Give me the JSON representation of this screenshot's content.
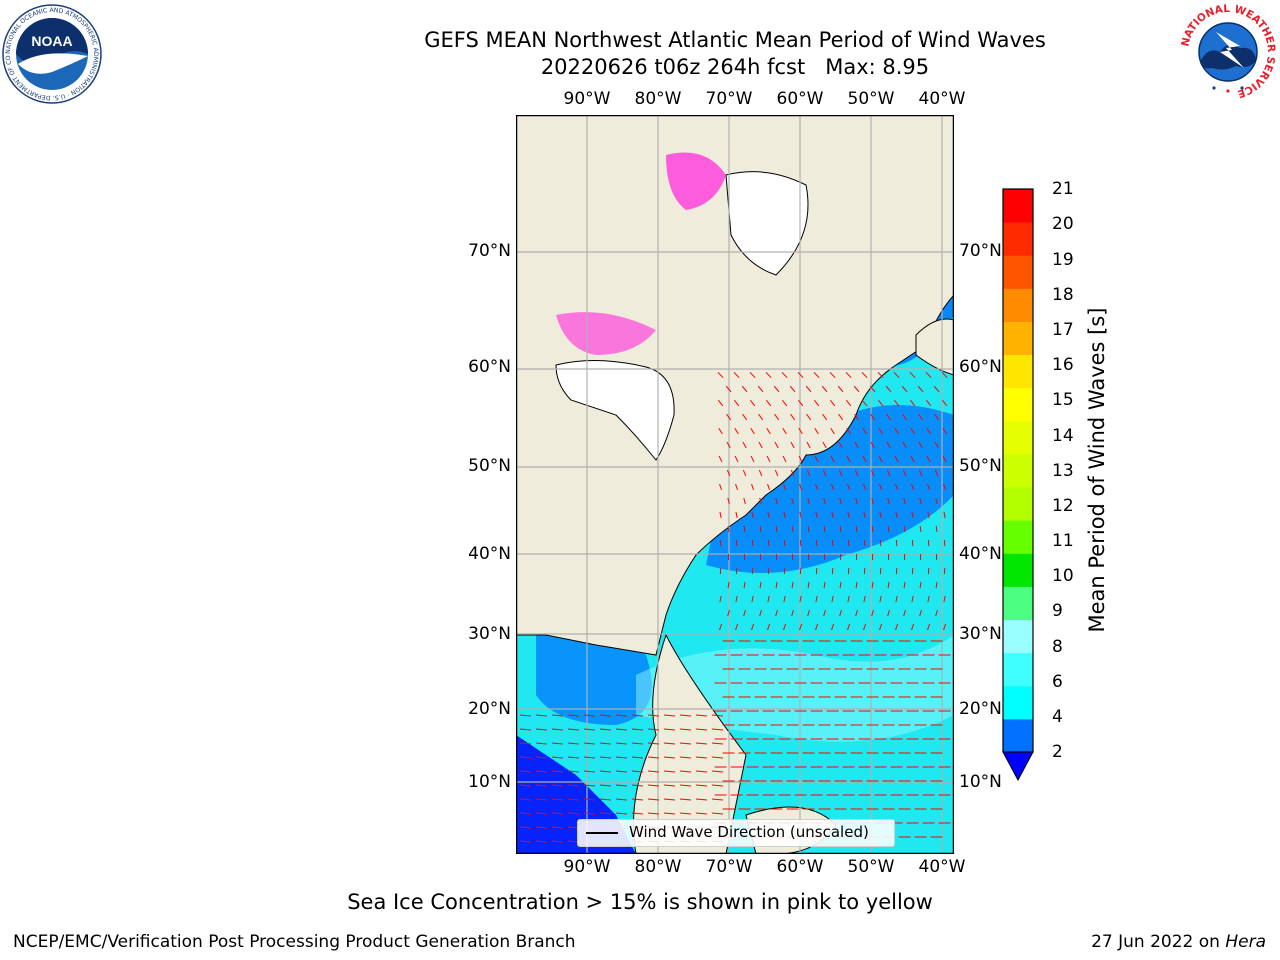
{
  "header": {
    "title_line1": "GEFS MEAN Northwest Atlantic Mean Period of Wind Waves",
    "title_line2": "20220626 t06z 264h fcst   Max: 8.95"
  },
  "map": {
    "lon_labels": [
      "90°W",
      "80°W",
      "70°W",
      "60°W",
      "50°W",
      "40°W"
    ],
    "lat_labels": [
      "70°N",
      "60°N",
      "50°N",
      "40°N",
      "30°N",
      "20°N",
      "10°N"
    ],
    "colors": {
      "land": "#efecdc",
      "ice_free_land": "#ffffff",
      "gridline": "#b0b0b0",
      "arrow": "#ff0000",
      "coast": "#000000"
    },
    "legend_label": "Wind Wave Direction (unscaled)"
  },
  "colorbar": {
    "label": "Mean Period of Wind Waves [s]",
    "ticks": [
      "2",
      "4",
      "6",
      "8",
      "9",
      "10",
      "11",
      "12",
      "13",
      "14",
      "15",
      "16",
      "17",
      "18",
      "19",
      "20",
      "21"
    ],
    "under_color": "#0000ff",
    "colors": [
      "#0070ff",
      "#00ffff",
      "#40ffff",
      "#99ffff",
      "#4dff80",
      "#00e600",
      "#66ff00",
      "#b3ff00",
      "#ccff00",
      "#e6ff00",
      "#ffff00",
      "#ffe600",
      "#ffb300",
      "#ff8c00",
      "#ff5500",
      "#ff2a00",
      "#ff0000"
    ]
  },
  "notes": {
    "sea_ice": "Sea Ice Concentration > 15% is shown in pink to yellow"
  },
  "footer": {
    "left": "NCEP/EMC/Verification Post Processing Product Generation Branch",
    "right_date": "27 Jun 2022 on",
    "right_host": "Hera"
  },
  "logos": {
    "noaa_text": "NOAA",
    "noaa_ring": "NATIONAL OCEANIC AND ATMOSPHERIC ADMINISTRATION · U.S. DEPARTMENT OF COMMERCE ·",
    "nws_ring": "NATIONAL WEATHER SERVICE"
  }
}
